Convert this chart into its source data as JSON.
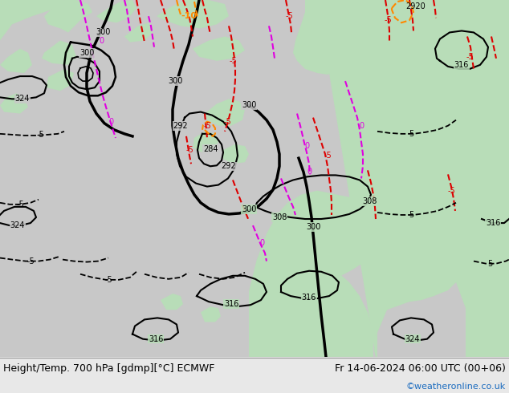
{
  "title_left": "Height/Temp. 700 hPa [gdmp][°C] ECMWF",
  "title_right": "Fr 14-06-2024 06:00 UTC (00+06)",
  "watermark": "©weatheronline.co.uk",
  "fig_width": 6.34,
  "fig_height": 4.9,
  "dpi": 100,
  "sea_color": "#c8c8c8",
  "land_color_light": "#b8ddb8",
  "land_color_dark": "#a0c8a0",
  "bottom_color": "#e8e8e8",
  "watermark_color": "#1a6bbf",
  "c_black": "#000000",
  "c_magenta": "#e000e0",
  "c_red": "#dd0000",
  "c_orange": "#ff8800"
}
